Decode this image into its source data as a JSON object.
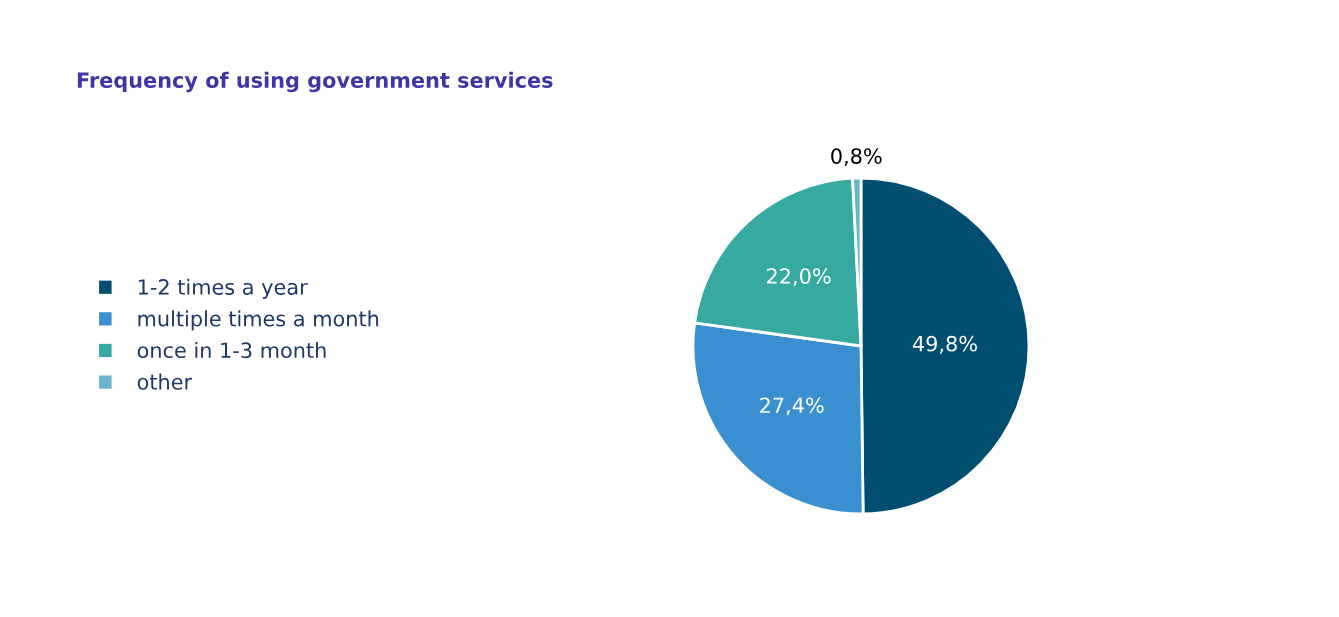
{
  "chart_data": {
    "type": "pie",
    "title": "Frequency of using government services",
    "categories": [
      "1-2 times a year",
      "multiple times a month",
      "once in 1-3 month",
      "other"
    ],
    "values": [
      49.8,
      27.4,
      22.0,
      0.8
    ],
    "value_labels": [
      "49,8%",
      "27,4%",
      "22,0%",
      "0,8%"
    ],
    "colors": [
      "#004f71",
      "#3a8fd0",
      "#36a9a0",
      "#6ab4cc"
    ],
    "legend": "left"
  }
}
